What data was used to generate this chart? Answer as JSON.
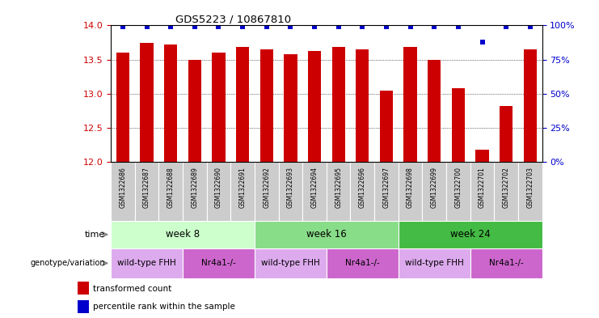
{
  "title": "GDS5223 / 10867810",
  "samples": [
    "GSM1322686",
    "GSM1322687",
    "GSM1322688",
    "GSM1322689",
    "GSM1322690",
    "GSM1322691",
    "GSM1322692",
    "GSM1322693",
    "GSM1322694",
    "GSM1322695",
    "GSM1322696",
    "GSM1322697",
    "GSM1322698",
    "GSM1322699",
    "GSM1322700",
    "GSM1322701",
    "GSM1322702",
    "GSM1322703"
  ],
  "transformed_counts": [
    13.6,
    13.75,
    13.72,
    13.5,
    13.6,
    13.68,
    13.65,
    13.58,
    13.63,
    13.68,
    13.65,
    13.05,
    13.68,
    13.5,
    13.08,
    12.18,
    12.82,
    13.65
  ],
  "percentile_ranks": [
    99,
    99,
    99,
    99,
    99,
    99,
    99,
    99,
    99,
    99,
    99,
    99,
    99,
    99,
    99,
    88,
    99,
    99
  ],
  "ylim_left": [
    12,
    14
  ],
  "ylim_right": [
    0,
    100
  ],
  "yticks_left": [
    12,
    12.5,
    13,
    13.5,
    14
  ],
  "yticks_right": [
    0,
    25,
    50,
    75,
    100
  ],
  "bar_color": "#cc0000",
  "dot_color": "#0000cc",
  "time_groups": [
    {
      "label": "week 8",
      "start": 0,
      "end": 6,
      "color": "#ccffcc"
    },
    {
      "label": "week 16",
      "start": 6,
      "end": 12,
      "color": "#88dd88"
    },
    {
      "label": "week 24",
      "start": 12,
      "end": 18,
      "color": "#44bb44"
    }
  ],
  "genotype_groups": [
    {
      "label": "wild-type FHH",
      "start": 0,
      "end": 3,
      "color": "#ddaaee"
    },
    {
      "label": "Nr4a1-/-",
      "start": 3,
      "end": 6,
      "color": "#cc66cc"
    },
    {
      "label": "wild-type FHH",
      "start": 6,
      "end": 9,
      "color": "#ddaaee"
    },
    {
      "label": "Nr4a1-/-",
      "start": 9,
      "end": 12,
      "color": "#cc66cc"
    },
    {
      "label": "wild-type FHH",
      "start": 12,
      "end": 15,
      "color": "#ddaaee"
    },
    {
      "label": "Nr4a1-/-",
      "start": 15,
      "end": 18,
      "color": "#cc66cc"
    }
  ],
  "sample_bg_color": "#cccccc",
  "axis_color_left": "#cc0000",
  "axis_color_right": "#0000cc",
  "legend": [
    {
      "label": "transformed count",
      "color": "#cc0000"
    },
    {
      "label": "percentile rank within the sample",
      "color": "#0000cc"
    }
  ]
}
